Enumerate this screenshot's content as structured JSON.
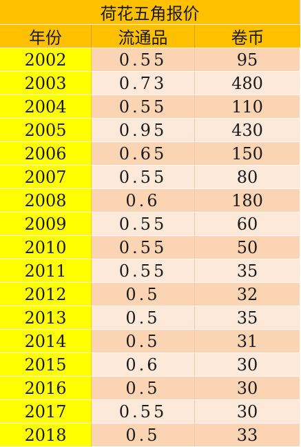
{
  "title": "荷花五角报价",
  "columns": [
    "年份",
    "流通品",
    "卷币"
  ],
  "rows": [
    {
      "year": "2002",
      "circulated": "0.55",
      "roll": "95"
    },
    {
      "year": "2003",
      "circulated": "0.73",
      "roll": "480"
    },
    {
      "year": "2004",
      "circulated": "0.55",
      "roll": "110"
    },
    {
      "year": "2005",
      "circulated": "0.95",
      "roll": "430"
    },
    {
      "year": "2006",
      "circulated": "0.65",
      "roll": "150"
    },
    {
      "year": "2007",
      "circulated": "0.55",
      "roll": "80"
    },
    {
      "year": "2008",
      "circulated": "0.6",
      "roll": "180"
    },
    {
      "year": "2009",
      "circulated": "0.55",
      "roll": "60"
    },
    {
      "year": "2010",
      "circulated": "0.55",
      "roll": "50"
    },
    {
      "year": "2011",
      "circulated": "0.55",
      "roll": "35"
    },
    {
      "year": "2012",
      "circulated": "0.5",
      "roll": "32"
    },
    {
      "year": "2013",
      "circulated": "0.5",
      "roll": "35"
    },
    {
      "year": "2014",
      "circulated": "0.5",
      "roll": "31"
    },
    {
      "year": "2015",
      "circulated": "0.6",
      "roll": "30"
    },
    {
      "year": "2016",
      "circulated": "0.5",
      "roll": "30"
    },
    {
      "year": "2017",
      "circulated": "0.55",
      "roll": "30"
    },
    {
      "year": "2018",
      "circulated": "0.5",
      "roll": "33"
    }
  ],
  "colors": {
    "title_bg": "#ffc000",
    "header_bg": "#ffc000",
    "year_bg": "#ffff00",
    "row_odd_bg": "#fbd4b4",
    "row_even_bg": "#fde9d9"
  }
}
